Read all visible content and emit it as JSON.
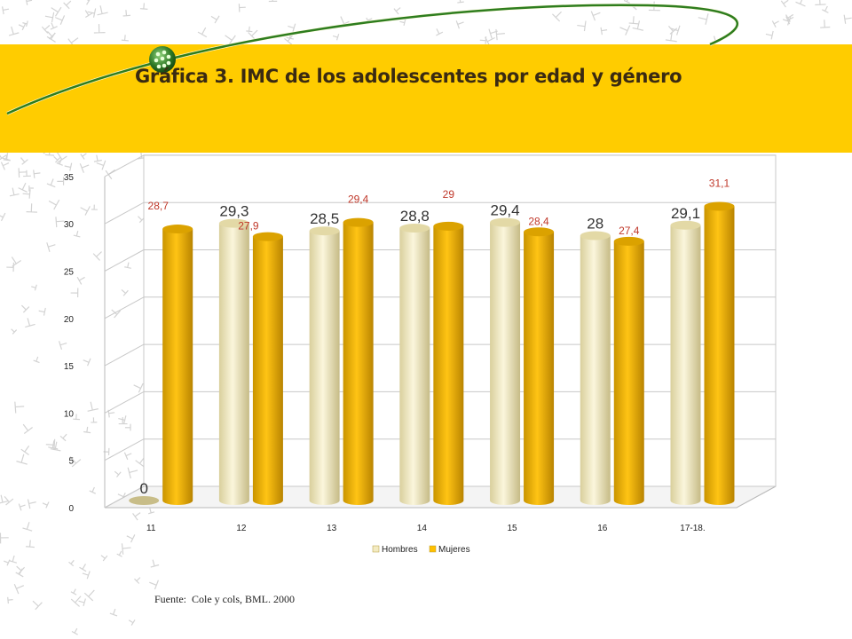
{
  "title": "Gráfica 3. IMC  de los adolescentes por edad y género",
  "source": "Fuente:  Cole y cols, BML. 2000",
  "colors": {
    "banner": "#ffcc00",
    "hombres": "#f3ebc2",
    "mujeres": "#ffc000",
    "mujeres_label": "#c0392b",
    "hombres_label": "#333333"
  },
  "chart_data": {
    "type": "bar",
    "title": "",
    "xlabel": "",
    "ylabel": "",
    "categories": [
      "11",
      "12",
      "13",
      "14",
      "15",
      "16",
      "17-18."
    ],
    "series": [
      {
        "name": "Hombres",
        "values": [
          0,
          29.3,
          28.5,
          28.8,
          29.4,
          28,
          29.1
        ]
      },
      {
        "name": "Mujeres",
        "values": [
          28.7,
          27.9,
          29.4,
          29,
          28.4,
          27.4,
          31.1
        ]
      }
    ],
    "value_labels": {
      "Hombres": [
        "0",
        "29,3",
        "28,5",
        "28,8",
        "29,4",
        "28",
        "29,1"
      ],
      "Mujeres": [
        "28,7",
        "27,9",
        "29,4",
        "29",
        "28,4",
        "27,4",
        "31,1"
      ]
    },
    "y_ticks": [
      "0",
      "5",
      "10",
      "15",
      "20",
      "25",
      "30",
      "35"
    ],
    "ylim": [
      0,
      35
    ],
    "grid": true,
    "legend_position": "bottom",
    "three_d": true
  }
}
